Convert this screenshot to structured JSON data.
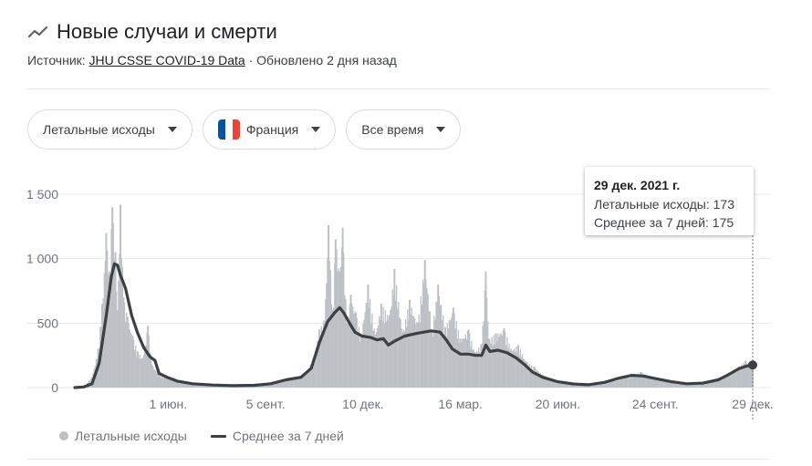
{
  "header": {
    "title": "Новые случаи и смерти",
    "source_prefix": "Источник:",
    "source_link": "JHU CSSE COVID-19 Data",
    "updated": "· Обновлено 2 дня назад",
    "icon": "trending-line-icon"
  },
  "filters": [
    {
      "label": "Летальные исходы"
    },
    {
      "label": "Франция",
      "flag_colors": [
        "#0055a4",
        "#ffffff",
        "#ef4135"
      ]
    },
    {
      "label": "Все время"
    }
  ],
  "tooltip": {
    "date": "29 дек. 2021 г.",
    "line1": "Летальные исходы: 173",
    "line2": "Среднее за 7 дней: 175"
  },
  "legend": {
    "daily": "Летальные исходы",
    "avg": "Среднее за 7 дней"
  },
  "colors": {
    "bars": "#bdc1c6",
    "average_line": "#3c4043",
    "grid": "#e8eaed",
    "axis_text": "#70757a"
  },
  "chart_data": {
    "type": "bar",
    "title": "",
    "ylim": [
      0,
      1500
    ],
    "yticks": [
      0,
      500,
      1000,
      1500
    ],
    "ytick_labels": [
      "0",
      "500",
      "1 000",
      "1 500"
    ],
    "xticks": [
      {
        "label": "1 июн.",
        "date": "2020-06-01"
      },
      {
        "label": "5 сент.",
        "date": "2020-09-05"
      },
      {
        "label": "10 дек.",
        "date": "2020-12-10"
      },
      {
        "label": "16 мар.",
        "date": "2021-03-16"
      },
      {
        "label": "20 июн.",
        "date": "2021-06-20"
      },
      {
        "label": "24 сент.",
        "date": "2021-09-24"
      },
      {
        "label": "29 дек.",
        "date": "2021-12-29"
      }
    ],
    "x_start": "2020-03-01",
    "x_end": "2021-12-29",
    "grid": true,
    "series": [
      {
        "name": "Летальные исходы",
        "style": "bars",
        "points": [
          [
            "2020-03-01",
            0
          ],
          [
            "2020-03-10",
            10
          ],
          [
            "2020-03-18",
            80
          ],
          [
            "2020-03-24",
            300
          ],
          [
            "2020-03-28",
            650
          ],
          [
            "2020-04-01",
            1200
          ],
          [
            "2020-04-04",
            900
          ],
          [
            "2020-04-07",
            1400
          ],
          [
            "2020-04-10",
            1050
          ],
          [
            "2020-04-12",
            600
          ],
          [
            "2020-04-15",
            1420
          ],
          [
            "2020-04-18",
            700
          ],
          [
            "2020-04-22",
            550
          ],
          [
            "2020-04-27",
            400
          ],
          [
            "2020-05-02",
            280
          ],
          [
            "2020-05-07",
            230
          ],
          [
            "2020-05-12",
            480
          ],
          [
            "2020-05-16",
            180
          ],
          [
            "2020-05-22",
            110
          ],
          [
            "2020-06-01",
            70
          ],
          [
            "2020-06-10",
            60
          ],
          [
            "2020-06-25",
            30
          ],
          [
            "2020-07-15",
            20
          ],
          [
            "2020-08-05",
            12
          ],
          [
            "2020-08-25",
            18
          ],
          [
            "2020-09-05",
            25
          ],
          [
            "2020-09-20",
            55
          ],
          [
            "2020-10-05",
            75
          ],
          [
            "2020-10-15",
            110
          ],
          [
            "2020-10-22",
            230
          ],
          [
            "2020-10-28",
            450
          ],
          [
            "2020-11-02",
            520
          ],
          [
            "2020-11-06",
            1260
          ],
          [
            "2020-11-10",
            600
          ],
          [
            "2020-11-13",
            1150
          ],
          [
            "2020-11-17",
            900
          ],
          [
            "2020-11-20",
            1240
          ],
          [
            "2020-11-24",
            500
          ],
          [
            "2020-11-28",
            720
          ],
          [
            "2020-12-03",
            580
          ],
          [
            "2020-12-08",
            400
          ],
          [
            "2020-12-15",
            800
          ],
          [
            "2020-12-22",
            410
          ],
          [
            "2020-12-28",
            650
          ],
          [
            "2021-01-05",
            560
          ],
          [
            "2021-01-10",
            920
          ],
          [
            "2021-01-18",
            430
          ],
          [
            "2021-01-25",
            680
          ],
          [
            "2021-02-02",
            500
          ],
          [
            "2021-02-09",
            990
          ],
          [
            "2021-02-16",
            440
          ],
          [
            "2021-02-22",
            800
          ],
          [
            "2021-03-01",
            470
          ],
          [
            "2021-03-09",
            620
          ],
          [
            "2021-03-16",
            380
          ],
          [
            "2021-03-24",
            450
          ],
          [
            "2021-03-30",
            280
          ],
          [
            "2021-04-06",
            340
          ],
          [
            "2021-04-10",
            900
          ],
          [
            "2021-04-13",
            380
          ],
          [
            "2021-04-20",
            420
          ],
          [
            "2021-04-28",
            460
          ],
          [
            "2021-05-05",
            300
          ],
          [
            "2021-05-12",
            330
          ],
          [
            "2021-05-20",
            200
          ],
          [
            "2021-05-28",
            160
          ],
          [
            "2021-06-05",
            100
          ],
          [
            "2021-06-20",
            50
          ],
          [
            "2021-07-05",
            25
          ],
          [
            "2021-07-20",
            18
          ],
          [
            "2021-08-05",
            30
          ],
          [
            "2021-08-20",
            70
          ],
          [
            "2021-09-01",
            95
          ],
          [
            "2021-09-10",
            120
          ],
          [
            "2021-09-24",
            70
          ],
          [
            "2021-10-10",
            55
          ],
          [
            "2021-10-25",
            35
          ],
          [
            "2021-11-10",
            30
          ],
          [
            "2021-11-25",
            60
          ],
          [
            "2021-12-05",
            110
          ],
          [
            "2021-12-15",
            160
          ],
          [
            "2021-12-22",
            210
          ],
          [
            "2021-12-29",
            173
          ]
        ]
      },
      {
        "name": "Среднее за 7 дней",
        "style": "line",
        "points": [
          [
            "2020-03-01",
            0
          ],
          [
            "2020-03-10",
            5
          ],
          [
            "2020-03-18",
            30
          ],
          [
            "2020-03-25",
            190
          ],
          [
            "2020-04-01",
            560
          ],
          [
            "2020-04-06",
            860
          ],
          [
            "2020-04-09",
            960
          ],
          [
            "2020-04-12",
            950
          ],
          [
            "2020-04-15",
            870
          ],
          [
            "2020-04-20",
            770
          ],
          [
            "2020-04-26",
            560
          ],
          [
            "2020-05-02",
            420
          ],
          [
            "2020-05-08",
            310
          ],
          [
            "2020-05-14",
            240
          ],
          [
            "2020-05-19",
            210
          ],
          [
            "2020-05-23",
            110
          ],
          [
            "2020-05-31",
            80
          ],
          [
            "2020-06-10",
            50
          ],
          [
            "2020-06-25",
            30
          ],
          [
            "2020-07-15",
            20
          ],
          [
            "2020-08-05",
            15
          ],
          [
            "2020-08-25",
            18
          ],
          [
            "2020-09-10",
            30
          ],
          [
            "2020-09-25",
            60
          ],
          [
            "2020-10-10",
            80
          ],
          [
            "2020-10-20",
            150
          ],
          [
            "2020-10-28",
            350
          ],
          [
            "2020-11-05",
            510
          ],
          [
            "2020-11-12",
            580
          ],
          [
            "2020-11-17",
            620
          ],
          [
            "2020-11-21",
            580
          ],
          [
            "2020-11-26",
            510
          ],
          [
            "2020-12-02",
            430
          ],
          [
            "2020-12-09",
            400
          ],
          [
            "2020-12-17",
            390
          ],
          [
            "2020-12-24",
            370
          ],
          [
            "2020-12-30",
            380
          ],
          [
            "2021-01-04",
            330
          ],
          [
            "2021-01-10",
            360
          ],
          [
            "2021-01-20",
            400
          ],
          [
            "2021-02-01",
            420
          ],
          [
            "2021-02-15",
            440
          ],
          [
            "2021-02-24",
            430
          ],
          [
            "2021-03-02",
            370
          ],
          [
            "2021-03-08",
            300
          ],
          [
            "2021-03-16",
            260
          ],
          [
            "2021-03-24",
            260
          ],
          [
            "2021-03-31",
            250
          ],
          [
            "2021-04-06",
            250
          ],
          [
            "2021-04-10",
            330
          ],
          [
            "2021-04-14",
            280
          ],
          [
            "2021-04-22",
            290
          ],
          [
            "2021-05-01",
            270
          ],
          [
            "2021-05-10",
            230
          ],
          [
            "2021-05-18",
            180
          ],
          [
            "2021-05-26",
            120
          ],
          [
            "2021-06-05",
            80
          ],
          [
            "2021-06-20",
            45
          ],
          [
            "2021-07-05",
            28
          ],
          [
            "2021-07-20",
            22
          ],
          [
            "2021-08-05",
            40
          ],
          [
            "2021-08-20",
            75
          ],
          [
            "2021-09-01",
            95
          ],
          [
            "2021-09-12",
            90
          ],
          [
            "2021-09-24",
            70
          ],
          [
            "2021-10-10",
            45
          ],
          [
            "2021-10-25",
            30
          ],
          [
            "2021-11-10",
            35
          ],
          [
            "2021-11-25",
            60
          ],
          [
            "2021-12-05",
            100
          ],
          [
            "2021-12-15",
            145
          ],
          [
            "2021-12-22",
            165
          ],
          [
            "2021-12-29",
            175
          ]
        ]
      }
    ]
  }
}
